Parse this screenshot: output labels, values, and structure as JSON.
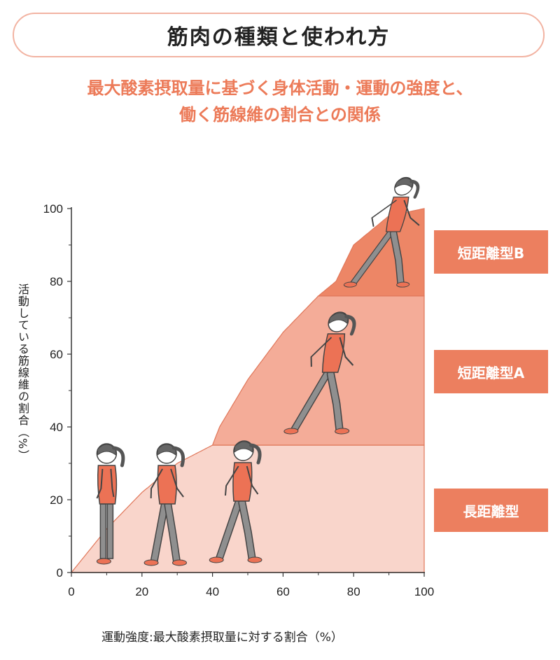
{
  "title": "筋肉の種類と使われ方",
  "subtitle_line1": "最大酸素摂取量に基づく身体活動・運動の強度と、",
  "subtitle_line2": "働く筋線維の割合との関係",
  "chart_data": {
    "type": "area",
    "xlabel": "運動強度:最大酸素摂取量に対する割合（%）",
    "ylabel": "活動している筋線維の割合（%）",
    "xlim": [
      0,
      100
    ],
    "ylim": [
      0,
      100
    ],
    "x_ticks": [
      0,
      20,
      40,
      60,
      80,
      100
    ],
    "y_ticks": [
      0,
      20,
      40,
      60,
      80,
      100
    ],
    "zones": [
      {
        "name": "長距離型",
        "y_range": [
          0,
          35
        ],
        "color": "#f9d5cb"
      },
      {
        "name": "短距離型A",
        "y_range": [
          35,
          76
        ],
        "color": "#f4ac98"
      },
      {
        "name": "短距離型B",
        "y_range": [
          76,
          100
        ],
        "color": "#ed8666"
      }
    ],
    "curve": {
      "x": [
        0,
        10,
        20,
        30,
        40,
        42,
        50,
        60,
        70,
        75,
        80,
        90,
        100
      ],
      "y": [
        0,
        12,
        22,
        30,
        35,
        40,
        53,
        66,
        76,
        80,
        90,
        98,
        100
      ]
    },
    "figures": [
      {
        "pose": "standing",
        "x": 10
      },
      {
        "pose": "walking",
        "x": 27
      },
      {
        "pose": "brisk-walking",
        "x": 47
      },
      {
        "pose": "jogging",
        "x": 70
      },
      {
        "pose": "running",
        "x": 87
      }
    ]
  },
  "colors": {
    "accent": "#ec7f5f",
    "zone_light": "#f9d5cb",
    "zone_mid": "#f4ac98",
    "zone_dark": "#ed8666",
    "shirt": "#ec7255",
    "pants": "#8f8f8f"
  }
}
